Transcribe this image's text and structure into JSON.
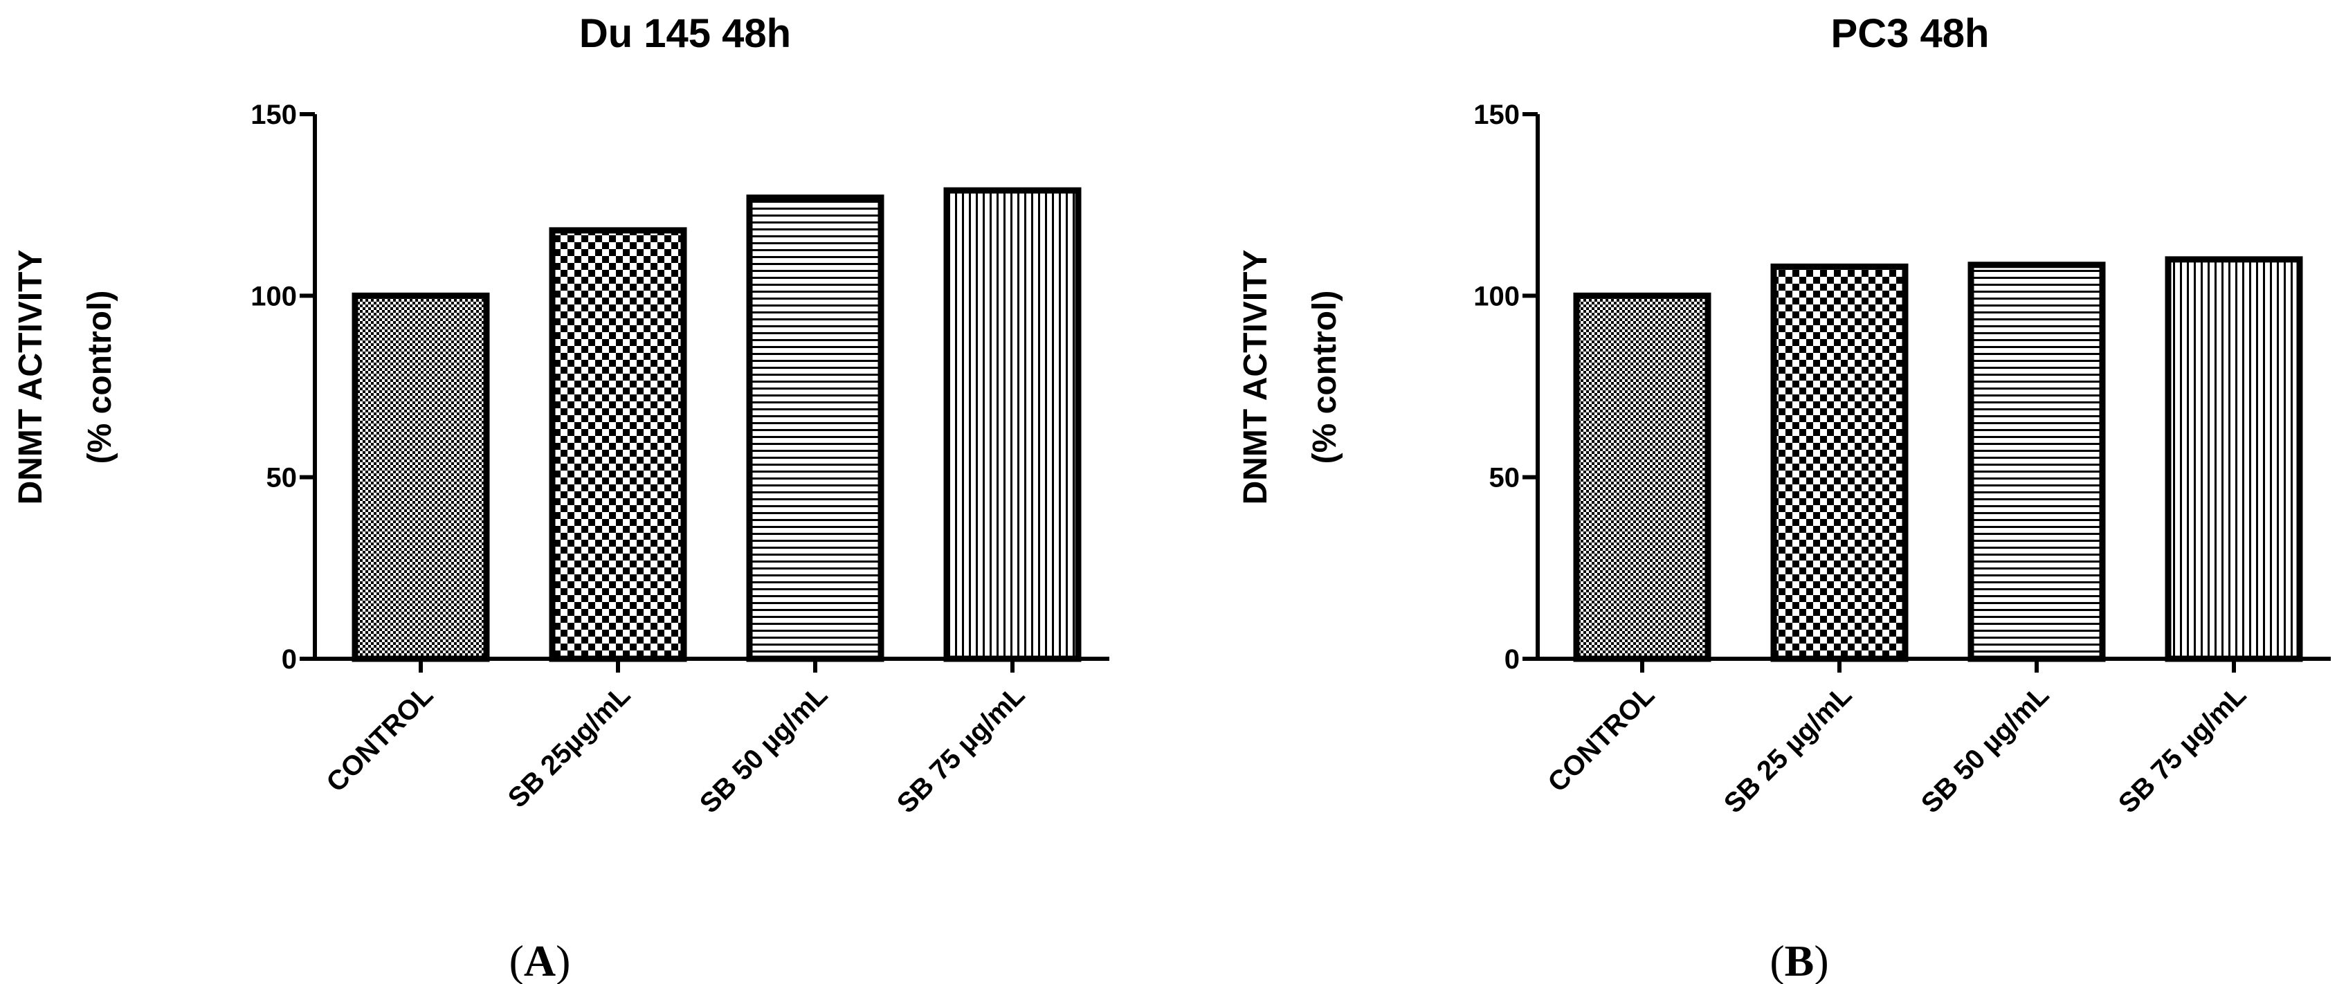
{
  "chart_data": [
    {
      "type": "bar",
      "title": "Du 145 48h",
      "panel_label": "A",
      "ylabel_line1": "DNMT ACTIVITY",
      "ylabel_line2": "(% control)",
      "categories": [
        "CONTROL",
        "SB 25µg/mL",
        "SB 50 µg/mL",
        "SB 75 µg/mL"
      ],
      "values": [
        100,
        118,
        127,
        129
      ],
      "patterns": [
        "fine-check",
        "coarse-check",
        "horizontal",
        "vertical"
      ],
      "ylim": [
        0,
        150
      ],
      "yticks": [
        0,
        50,
        100,
        150
      ],
      "grid": false
    },
    {
      "type": "bar",
      "title": "PC3 48h",
      "panel_label": "B",
      "ylabel_line1": "DNMT ACTIVITY",
      "ylabel_line2": "(% control)",
      "categories": [
        "CONTROL",
        "SB 25 µg/mL",
        "SB 50 µg/mL",
        "SB 75 µg/mL"
      ],
      "values": [
        100,
        108,
        108.5,
        110
      ],
      "patterns": [
        "fine-check",
        "coarse-check",
        "horizontal",
        "vertical"
      ],
      "ylim": [
        0,
        150
      ],
      "yticks": [
        0,
        50,
        100,
        150
      ],
      "grid": false
    }
  ]
}
